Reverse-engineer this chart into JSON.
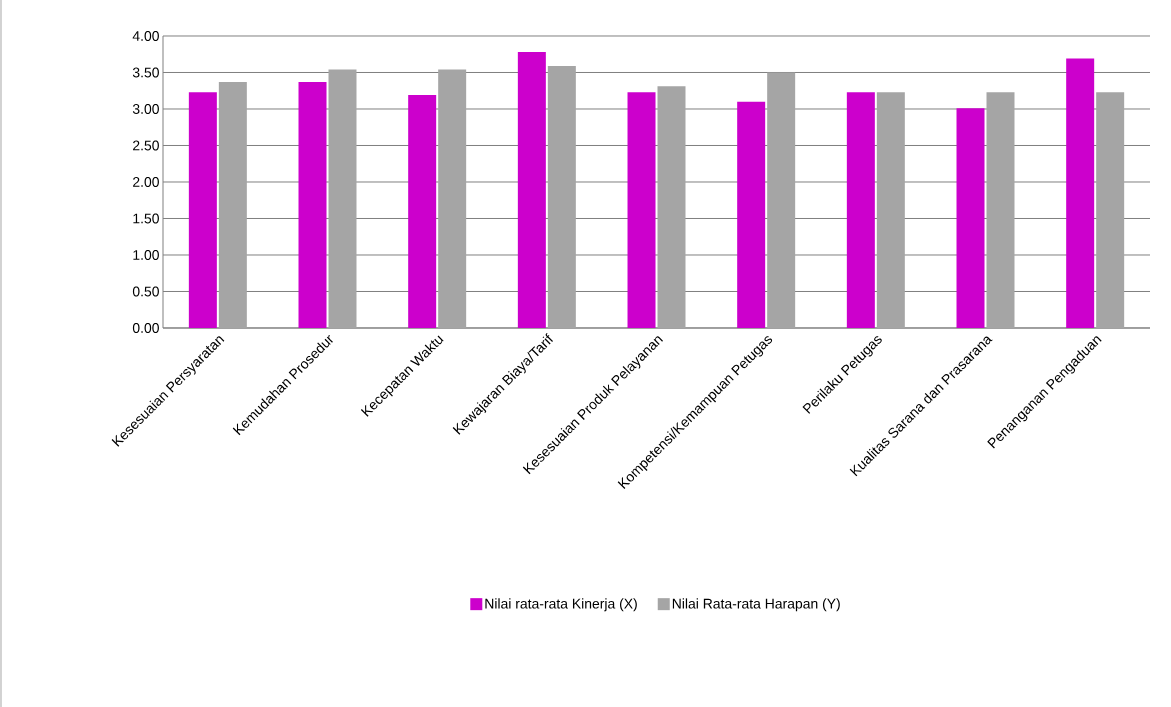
{
  "chart_data": {
    "type": "bar",
    "categories": [
      "Kesesuaian Persyaratan",
      "Kemudahan Prosedur",
      "Kecepatan Waktu",
      "Kewajaran Biaya/Tarif",
      "Kesesuaian Produk Pelayanan",
      "Kompetensi/Kemampuan Petugas",
      "Perilaku Petugas",
      "Kualitas Sarana dan Prasarana",
      "Penanganan Pengaduan"
    ],
    "series": [
      {
        "name": "Nilai rata-rata Kinerja (X)",
        "color": "#cc00cc",
        "values": [
          3.23,
          3.37,
          3.19,
          3.78,
          3.23,
          3.1,
          3.23,
          3.01,
          3.69
        ]
      },
      {
        "name": "Nilai Rata-rata Harapan (Y)",
        "color": "#a5a5a5",
        "values": [
          3.37,
          3.54,
          3.54,
          3.59,
          3.31,
          3.5,
          3.23,
          3.23,
          3.23
        ]
      }
    ],
    "ylim": [
      0,
      4
    ],
    "yticks": [
      {
        "value": 0,
        "label": "0.00"
      },
      {
        "value": 0.5,
        "label": "0.50"
      },
      {
        "value": 1,
        "label": "1.00"
      },
      {
        "value": 1.5,
        "label": "1.50"
      },
      {
        "value": 2,
        "label": "2.00"
      },
      {
        "value": 2.5,
        "label": "2.50"
      },
      {
        "value": 3,
        "label": "3.00"
      },
      {
        "value": 3.5,
        "label": "3.50"
      },
      {
        "value": 4,
        "label": "4.00"
      }
    ],
    "grid": "y",
    "legend": "bottom"
  }
}
